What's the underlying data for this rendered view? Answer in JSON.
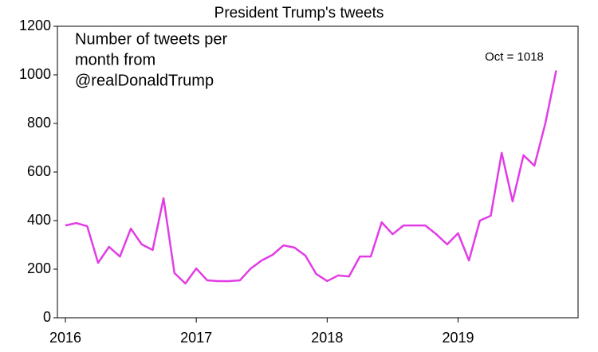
{
  "chart_data": {
    "type": "line",
    "title": "President  Trump's tweets",
    "subtitle": [
      "Number of tweets per",
      "month from",
      "@realDonaldTrump"
    ],
    "annotation": "Oct = 1018",
    "categories": [
      "2016",
      null,
      null,
      null,
      null,
      null,
      null,
      null,
      null,
      null,
      null,
      null,
      "2017",
      null,
      null,
      null,
      null,
      null,
      null,
      null,
      null,
      null,
      null,
      null,
      "2018",
      null,
      null,
      null,
      null,
      null,
      null,
      null,
      null,
      null,
      null,
      null,
      "2019",
      null,
      null,
      null,
      null,
      null,
      null,
      null,
      null,
      null
    ],
    "series": [
      {
        "name": "Tweets",
        "color": "#e23ce6",
        "values": [
          380,
          390,
          377,
          226,
          292,
          252,
          367,
          302,
          279,
          492,
          184,
          141,
          203,
          154,
          151,
          151,
          154,
          203,
          236,
          259,
          298,
          289,
          256,
          180,
          151,
          174,
          170,
          252,
          252,
          393,
          344,
          380,
          380,
          380,
          344,
          302,
          348,
          236,
          400,
          420,
          679,
          479,
          669,
          626,
          800,
          1018
        ]
      }
    ],
    "ylim": [
      0,
      1200
    ],
    "yticks": [
      0,
      200,
      400,
      600,
      800,
      1000,
      1200
    ],
    "grid": false
  }
}
